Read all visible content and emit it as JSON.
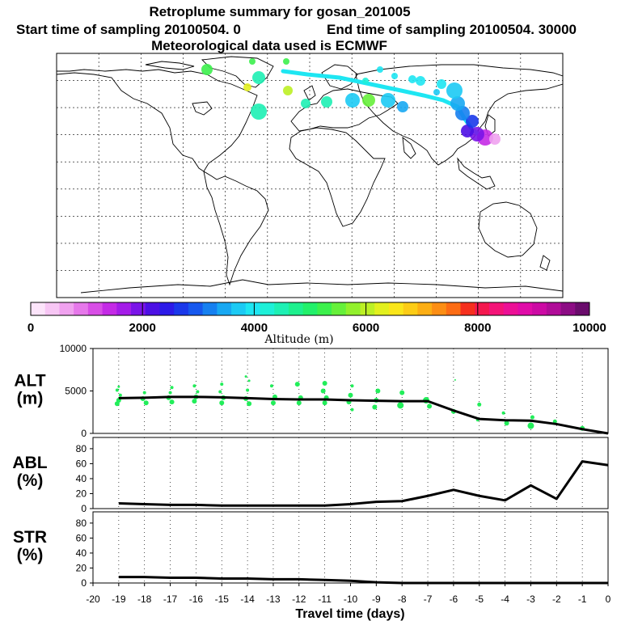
{
  "chart_data": [
    {
      "type": "map",
      "title": "Retroplume summary for gosan_201005",
      "subtitle_start": "Start time of sampling 20100504.    0",
      "subtitle_end": "End time of sampling 20100504. 30000",
      "met_note": "Meteorological data used is ECMWF",
      "colorbar": {
        "label": "Altitude (m)",
        "tick_labels": [
          "0",
          "2000",
          "4000",
          "6000",
          "8000",
          "10000"
        ],
        "range": [
          0,
          10000
        ],
        "colors": [
          "#fce4fa",
          "#f7c6f4",
          "#f0a2ef",
          "#e678ea",
          "#d84ee6",
          "#c42ae6",
          "#a41ce8",
          "#7a14e8",
          "#4c10e4",
          "#2c1ae8",
          "#1a38ea",
          "#1658ee",
          "#1680f0",
          "#18a8f2",
          "#1ccaf4",
          "#1ee6f2",
          "#1ef0d8",
          "#1ef0b4",
          "#1ef08e",
          "#22f06a",
          "#3cf04c",
          "#66f03a",
          "#92f02c",
          "#bcf024",
          "#e2f01e",
          "#fae61a",
          "#fccc16",
          "#fcae14",
          "#fc8e14",
          "#fc6c14",
          "#f6301e",
          "#f4184e",
          "#f41478",
          "#ec1096",
          "#e00ca8",
          "#cc0aa4",
          "#b00c98",
          "#8c0c84",
          "#6a0c6c"
        ]
      }
    },
    {
      "type": "scatter+line",
      "ylabel_1": "ALT",
      "ylabel_2": "(m)",
      "ytick_labels": [
        "10000",
        "5000",
        "0"
      ],
      "ylim": [
        0,
        10000
      ],
      "x": [
        0,
        -1,
        -2,
        -3,
        -4,
        -5,
        -6,
        -7,
        -8,
        -9,
        -10,
        -11,
        -12,
        -13,
        -14,
        -15,
        -16,
        -17,
        -18,
        -19
      ],
      "line": [
        0,
        500,
        1100,
        1500,
        1550,
        1700,
        2700,
        3800,
        3800,
        3850,
        3900,
        4000,
        4000,
        4050,
        4150,
        4250,
        4300,
        4300,
        4200,
        4150
      ],
      "points_x": [
        -19,
        -19,
        -19,
        -19,
        -19,
        -18,
        -18,
        -18,
        -17,
        -17,
        -17,
        -17,
        -16,
        -16,
        -16,
        -16,
        -15,
        -15,
        -15,
        -15,
        -14,
        -14,
        -14,
        -14,
        -14,
        -13,
        -13,
        -13,
        -12,
        -12,
        -12,
        -11,
        -11,
        -11,
        -11,
        -10,
        -10,
        -10,
        -10,
        -9,
        -9,
        -9,
        -8,
        -8,
        -7,
        -7,
        -6,
        -6,
        -5,
        -5,
        -4,
        -4,
        -3,
        -3,
        -2,
        -1
      ],
      "points_y": [
        3500,
        3900,
        4500,
        5100,
        5500,
        3600,
        4100,
        4800,
        3700,
        4200,
        4800,
        5400,
        3800,
        4300,
        4900,
        5600,
        3600,
        4200,
        4900,
        5800,
        3500,
        4100,
        5100,
        6200,
        6700,
        3600,
        4300,
        5600,
        3600,
        4200,
        5800,
        3600,
        4200,
        5000,
        5900,
        2800,
        3700,
        4500,
        5600,
        3100,
        3900,
        5000,
        3300,
        4800,
        3200,
        3900,
        2600,
        6300,
        1600,
        3400,
        1200,
        2400,
        900,
        1900,
        1400,
        600
      ],
      "points_size": [
        3,
        3,
        2,
        2,
        1.5,
        3,
        3,
        2,
        3,
        3,
        2,
        2,
        3,
        3,
        2,
        2,
        3,
        3,
        2,
        2,
        3,
        3,
        2,
        1.5,
        1.5,
        3,
        3,
        2,
        3,
        3,
        3,
        3,
        3,
        3,
        3,
        2,
        3,
        3,
        2,
        3,
        3,
        3,
        4,
        3,
        3,
        4,
        3,
        1,
        2,
        2.5,
        3,
        2,
        4,
        2.5,
        2.5,
        3
      ]
    },
    {
      "type": "line",
      "ylabel_1": "ABL",
      "ylabel_2": "(%)",
      "ytick_labels": [
        "80",
        "60",
        "40",
        "20",
        "0"
      ],
      "ylim": [
        0,
        95
      ],
      "x": [
        0,
        -1,
        -2,
        -3,
        -4,
        -5,
        -6,
        -7,
        -8,
        -9,
        -10,
        -11,
        -12,
        -13,
        -14,
        -15,
        -16,
        -17,
        -18,
        -19
      ],
      "values": [
        58,
        63,
        13,
        31,
        11,
        17,
        25,
        17,
        10,
        9,
        6,
        4,
        4,
        4,
        4,
        4,
        5,
        5,
        6,
        7
      ]
    },
    {
      "type": "line",
      "ylabel_1": "STR",
      "ylabel_2": "(%)",
      "ytick_labels": [
        "80",
        "60",
        "40",
        "20",
        "0"
      ],
      "ylim": [
        0,
        95
      ],
      "x": [
        0,
        -1,
        -2,
        -3,
        -4,
        -5,
        -6,
        -7,
        -8,
        -9,
        -10,
        -11,
        -12,
        -13,
        -14,
        -15,
        -16,
        -17,
        -18,
        -19
      ],
      "values": [
        0,
        0,
        0,
        0,
        0,
        0,
        0,
        0,
        0,
        1,
        3,
        4,
        5,
        5,
        6,
        6,
        7,
        7,
        8,
        8
      ],
      "xlabel": "Travel time (days)",
      "xtick_labels": [
        "-20",
        "-19",
        "-18",
        "-17",
        "-16",
        "-15",
        "-14",
        "-13",
        "-12",
        "-11",
        "-10",
        "-9",
        "-8",
        "-7",
        "-6",
        "-5",
        "-4",
        "-3",
        "-2",
        "-1",
        "0"
      ]
    }
  ]
}
